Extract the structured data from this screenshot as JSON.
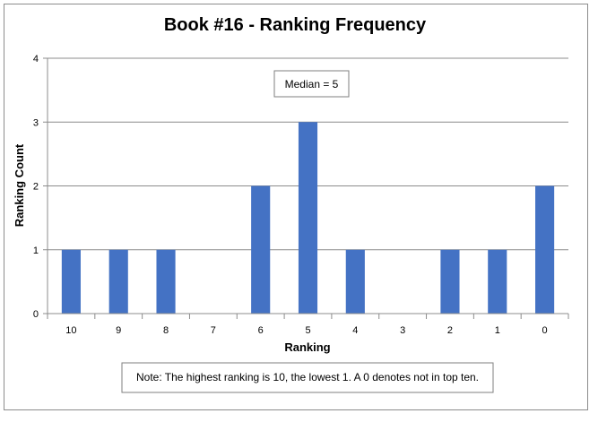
{
  "chart_data": {
    "type": "bar",
    "title": "Book #16 - Ranking Frequency",
    "xlabel": "Ranking",
    "ylabel": "Ranking Count",
    "categories": [
      "10",
      "9",
      "8",
      "7",
      "6",
      "5",
      "4",
      "3",
      "2",
      "1",
      "0"
    ],
    "values": [
      1,
      1,
      1,
      0,
      2,
      3,
      1,
      0,
      1,
      1,
      2
    ],
    "ylim": [
      0,
      4
    ],
    "yticks": [
      0,
      1,
      2,
      3,
      4
    ],
    "grid": true,
    "bar_color": "#4472C4",
    "annotations": {
      "median": "Median = 5",
      "note": "Note: The highest ranking is 10, the lowest 1. A 0 denotes not in top ten."
    }
  }
}
